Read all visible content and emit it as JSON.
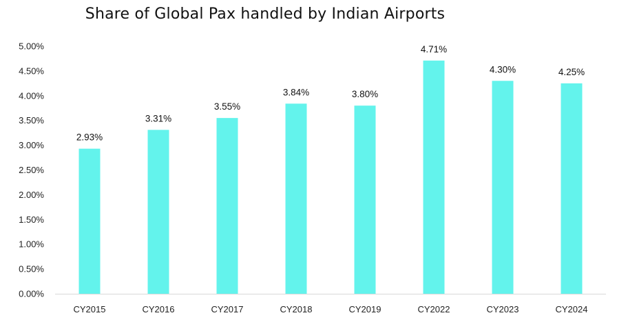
{
  "chart_data": {
    "type": "bar",
    "title": "Share of Global Pax handled by Indian Airports",
    "categories": [
      "CY2015",
      "CY2016",
      "CY2017",
      "CY2018",
      "CY2019",
      "CY2022",
      "CY2023",
      "CY2024"
    ],
    "values": [
      2.93,
      3.31,
      3.55,
      3.84,
      3.8,
      4.71,
      4.3,
      4.25
    ],
    "data_labels": [
      "2.93%",
      "3.31%",
      "3.55%",
      "3.84%",
      "3.80%",
      "4.71%",
      "4.30%",
      "4.25%"
    ],
    "ylim": [
      0,
      5
    ],
    "yticks": [
      0,
      0.5,
      1,
      1.5,
      2,
      2.5,
      3,
      3.5,
      4,
      4.5,
      5
    ],
    "ytick_labels": [
      "0.00%",
      "0.50%",
      "1.00%",
      "1.50%",
      "2.00%",
      "2.50%",
      "3.00%",
      "3.50%",
      "4.00%",
      "4.50%",
      "5.00%"
    ],
    "bar_color": "#63F3EC",
    "grid": false,
    "xlabel": "",
    "ylabel": ""
  }
}
